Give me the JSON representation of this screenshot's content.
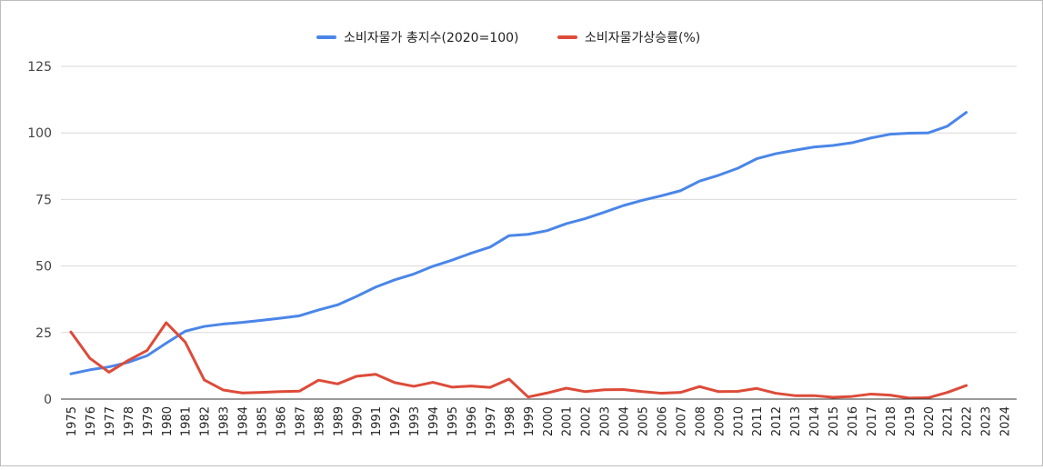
{
  "chart_data": {
    "type": "line",
    "title": "",
    "xlabel": "",
    "ylabel": "",
    "ylim": [
      0,
      125
    ],
    "yticks": [
      "0",
      "25",
      "50",
      "75",
      "100",
      "125"
    ],
    "categories": [
      "1975",
      "1976",
      "1977",
      "1978",
      "1979",
      "1980",
      "1981",
      "1982",
      "1983",
      "1984",
      "1985",
      "1986",
      "1987",
      "1988",
      "1989",
      "1990",
      "1991",
      "1992",
      "1993",
      "1994",
      "1995",
      "1996",
      "1997",
      "1998",
      "1999",
      "2000",
      "2001",
      "2002",
      "2003",
      "2004",
      "2005",
      "2006",
      "2007",
      "2008",
      "2009",
      "2010",
      "2011",
      "2012",
      "2013",
      "2014",
      "2015",
      "2016",
      "2017",
      "2018",
      "2019",
      "2020",
      "2021",
      "2022",
      "2023",
      "2024"
    ],
    "legend_position": "top-center",
    "series": [
      {
        "name": "소비자물가 총지수(2020=100)",
        "color": "#4a86e8",
        "values": [
          9.5,
          11.0,
          12.1,
          13.8,
          16.3,
          21.0,
          25.5,
          27.3,
          28.2,
          28.8,
          29.6,
          30.4,
          31.3,
          33.5,
          35.4,
          38.6,
          42.1,
          44.8,
          47.0,
          49.9,
          52.2,
          54.8,
          57.1,
          61.4,
          61.9,
          63.3,
          65.9,
          67.8,
          70.2,
          72.7,
          74.7,
          76.4,
          78.3,
          81.9,
          84.1,
          86.7,
          90.3,
          92.2,
          93.5,
          94.7,
          95.3,
          96.3,
          98.1,
          99.5,
          99.9,
          100.0,
          102.5,
          107.7,
          null,
          null
        ]
      },
      {
        "name": "소비자물가상승률(%)",
        "color": "#dd4b39",
        "values": [
          25.2,
          15.3,
          10.1,
          14.5,
          18.3,
          28.7,
          21.4,
          7.2,
          3.4,
          2.3,
          2.5,
          2.8,
          3.0,
          7.1,
          5.7,
          8.6,
          9.3,
          6.2,
          4.8,
          6.3,
          4.5,
          4.9,
          4.4,
          7.5,
          0.8,
          2.3,
          4.1,
          2.8,
          3.5,
          3.6,
          2.8,
          2.2,
          2.5,
          4.7,
          2.8,
          2.9,
          4.0,
          2.2,
          1.3,
          1.3,
          0.7,
          1.0,
          1.9,
          1.5,
          0.4,
          0.5,
          2.5,
          5.1,
          null,
          null
        ]
      }
    ]
  }
}
